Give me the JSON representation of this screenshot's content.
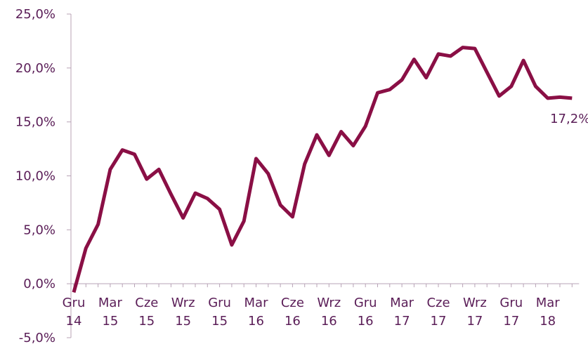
{
  "chart_data": {
    "type": "line",
    "categories": [
      "Gru 14",
      null,
      null,
      "Mar 15",
      null,
      null,
      "Cze 15",
      null,
      null,
      "Wrz 15",
      null,
      null,
      "Gru 15",
      null,
      null,
      "Mar 16",
      null,
      null,
      "Cze 16",
      null,
      null,
      "Wrz 16",
      null,
      null,
      "Gru 16",
      null,
      null,
      "Mar 17",
      null,
      null,
      "Cze 17",
      null,
      null,
      "Wrz 17",
      null,
      null,
      "Gru 17",
      null,
      null,
      "Mar 18",
      null,
      null
    ],
    "series": [
      {
        "color": "#8a0f45",
        "values": [
          -0.8,
          3.3,
          5.5,
          10.6,
          12.4,
          12.0,
          9.7,
          10.6,
          8.3,
          6.1,
          8.4,
          7.9,
          6.9,
          3.6,
          5.8,
          11.6,
          10.2,
          7.3,
          6.2,
          11.1,
          13.8,
          11.9,
          14.1,
          12.8,
          14.6,
          17.7,
          18.0,
          18.9,
          20.8,
          19.1,
          21.3,
          21.1,
          21.9,
          21.8,
          19.6,
          17.4,
          18.3,
          20.7,
          18.3,
          17.2,
          17.3,
          17.2
        ],
        "value_labels": [
          null,
          null,
          null,
          null,
          null,
          null,
          null,
          null,
          null,
          null,
          null,
          null,
          null,
          null,
          null,
          null,
          null,
          null,
          null,
          null,
          null,
          null,
          null,
          null,
          null,
          null,
          null,
          null,
          null,
          null,
          null,
          null,
          null,
          null,
          null,
          null,
          null,
          null,
          null,
          null,
          null,
          "17,2%"
        ]
      }
    ],
    "ylim": [
      -5,
      25
    ],
    "yticks": [
      {
        "value": -5,
        "label": "-5,0%"
      },
      {
        "value": 0,
        "label": "0,0%"
      },
      {
        "value": 5,
        "label": "5,0%"
      },
      {
        "value": 10,
        "label": "10,0%"
      },
      {
        "value": 15,
        "label": "15,0%"
      },
      {
        "value": 20,
        "label": "20,0%"
      },
      {
        "value": 25,
        "label": "25,0%"
      }
    ]
  }
}
